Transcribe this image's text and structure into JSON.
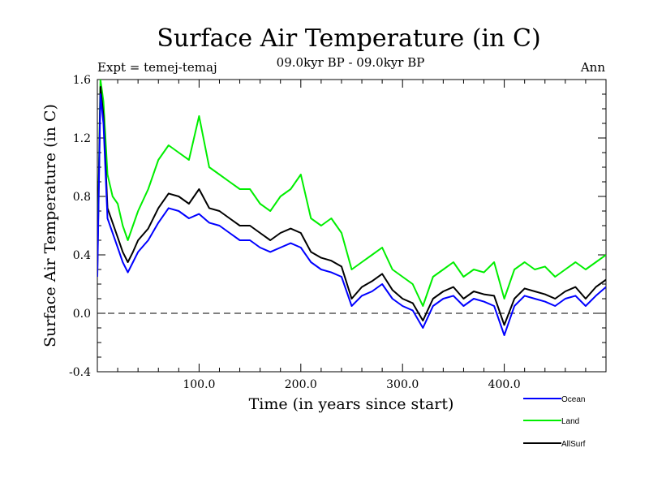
{
  "chart_data": {
    "type": "line",
    "title": "Surface Air Temperature (in C)",
    "subtitle": "09.0kyr BP - 09.0kyr BP",
    "experiment_label": "Expt = temej-temaj",
    "period_label": "Ann",
    "xlabel": "Time (in years since start)",
    "ylabel": "Surface Air Temperature (in C)",
    "xlim": [
      0,
      500
    ],
    "ylim": [
      -0.4,
      1.6
    ],
    "x_ticks": [
      100,
      200,
      300,
      400
    ],
    "x_tick_labels": [
      "100.0",
      "200.0",
      "300.0",
      "400.0"
    ],
    "y_ticks": [
      -0.4,
      0.0,
      0.4,
      0.8,
      1.2,
      1.6
    ],
    "y_tick_labels": [
      "-0.4",
      "0.0",
      "0.4",
      "0.8",
      "1.2",
      "1.6"
    ],
    "reference_line": 0.0,
    "legend_position": "bottom-right",
    "series": [
      {
        "name": "Ocean",
        "color": "#0000ff",
        "x": [
          0,
          3,
          6,
          10,
          15,
          20,
          25,
          30,
          35,
          40,
          50,
          60,
          70,
          80,
          90,
          100,
          110,
          120,
          130,
          140,
          150,
          160,
          170,
          180,
          190,
          200,
          210,
          220,
          230,
          240,
          250,
          260,
          270,
          280,
          290,
          300,
          310,
          320,
          330,
          340,
          350,
          360,
          370,
          380,
          390,
          400,
          410,
          420,
          430,
          440,
          450,
          460,
          470,
          480,
          490,
          500
        ],
        "values": [
          0.25,
          1.5,
          1.3,
          0.65,
          0.55,
          0.45,
          0.35,
          0.28,
          0.35,
          0.42,
          0.5,
          0.62,
          0.72,
          0.7,
          0.65,
          0.68,
          0.62,
          0.6,
          0.55,
          0.5,
          0.5,
          0.45,
          0.42,
          0.45,
          0.48,
          0.45,
          0.35,
          0.3,
          0.28,
          0.25,
          0.05,
          0.12,
          0.15,
          0.2,
          0.1,
          0.05,
          0.02,
          -0.1,
          0.05,
          0.1,
          0.12,
          0.05,
          0.1,
          0.08,
          0.05,
          -0.15,
          0.05,
          0.12,
          0.1,
          0.08,
          0.05,
          0.1,
          0.12,
          0.05,
          0.12,
          0.18
        ]
      },
      {
        "name": "Land",
        "color": "#00ee00",
        "x": [
          0,
          3,
          6,
          10,
          15,
          20,
          25,
          30,
          35,
          40,
          50,
          60,
          70,
          80,
          90,
          100,
          110,
          120,
          130,
          140,
          150,
          160,
          170,
          180,
          190,
          200,
          210,
          220,
          230,
          240,
          250,
          260,
          270,
          280,
          290,
          300,
          310,
          320,
          330,
          340,
          350,
          360,
          370,
          380,
          390,
          400,
          410,
          420,
          430,
          440,
          450,
          460,
          470,
          480,
          490,
          500
        ],
        "values": [
          0.35,
          1.6,
          1.45,
          0.95,
          0.8,
          0.75,
          0.6,
          0.5,
          0.6,
          0.7,
          0.85,
          1.05,
          1.15,
          1.1,
          1.05,
          1.35,
          1.0,
          0.95,
          0.9,
          0.85,
          0.85,
          0.75,
          0.7,
          0.8,
          0.85,
          0.95,
          0.65,
          0.6,
          0.65,
          0.55,
          0.3,
          0.35,
          0.4,
          0.45,
          0.3,
          0.25,
          0.2,
          0.05,
          0.25,
          0.3,
          0.35,
          0.25,
          0.3,
          0.28,
          0.35,
          0.1,
          0.3,
          0.35,
          0.3,
          0.32,
          0.25,
          0.3,
          0.35,
          0.3,
          0.35,
          0.4
        ]
      },
      {
        "name": "AllSurf",
        "color": "#000000",
        "x": [
          0,
          3,
          6,
          10,
          15,
          20,
          25,
          30,
          35,
          40,
          50,
          60,
          70,
          80,
          90,
          100,
          110,
          120,
          130,
          140,
          150,
          160,
          170,
          180,
          190,
          200,
          210,
          220,
          230,
          240,
          250,
          260,
          270,
          280,
          290,
          300,
          310,
          320,
          330,
          340,
          350,
          360,
          370,
          380,
          390,
          400,
          410,
          420,
          430,
          440,
          450,
          460,
          470,
          480,
          490,
          500
        ],
        "values": [
          0.3,
          1.55,
          1.35,
          0.72,
          0.62,
          0.52,
          0.42,
          0.35,
          0.42,
          0.5,
          0.58,
          0.72,
          0.82,
          0.8,
          0.75,
          0.85,
          0.72,
          0.7,
          0.65,
          0.6,
          0.6,
          0.55,
          0.5,
          0.55,
          0.58,
          0.55,
          0.42,
          0.38,
          0.36,
          0.32,
          0.1,
          0.18,
          0.22,
          0.27,
          0.16,
          0.1,
          0.07,
          -0.05,
          0.1,
          0.15,
          0.18,
          0.1,
          0.15,
          0.13,
          0.12,
          -0.08,
          0.1,
          0.17,
          0.15,
          0.13,
          0.1,
          0.15,
          0.18,
          0.1,
          0.18,
          0.23
        ]
      }
    ]
  }
}
